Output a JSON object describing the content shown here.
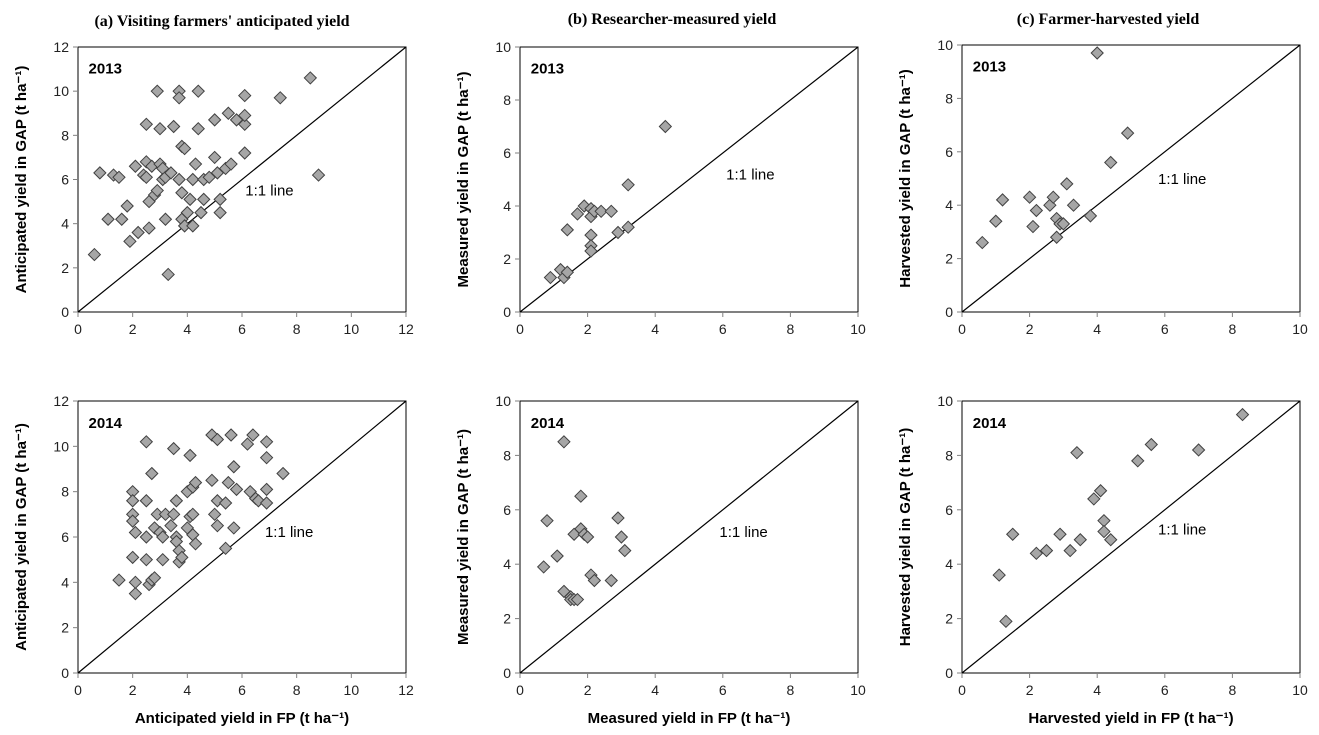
{
  "panel_titles": [
    "(a) Visiting farmers' anticipated yield",
    "(b)  Researcher-measured yield",
    "(c)  Farmer-harvested yield"
  ],
  "colors": {
    "marker_fill": "#a6a6a6",
    "marker_stroke": "#404040",
    "frame": "#000000",
    "axis": "#808080"
  },
  "chart_data": [
    {
      "type": "scatter",
      "year": "2013",
      "ref_line_label": "1:1 line",
      "xlabel": "",
      "ylabel": "Anticipated yield in GAP (t ha⁻¹)",
      "xlim": [
        0,
        12
      ],
      "ylim": [
        0,
        12
      ],
      "xticks": [
        0,
        2,
        4,
        6,
        8,
        10,
        12
      ],
      "yticks": [
        0,
        2,
        4,
        6,
        8,
        10,
        12
      ],
      "points": [
        [
          0.6,
          2.6
        ],
        [
          0.8,
          6.3
        ],
        [
          1.1,
          4.2
        ],
        [
          1.3,
          6.2
        ],
        [
          1.5,
          6.1
        ],
        [
          1.6,
          4.2
        ],
        [
          1.8,
          4.8
        ],
        [
          1.9,
          3.2
        ],
        [
          2.1,
          6.6
        ],
        [
          2.2,
          3.6
        ],
        [
          2.4,
          6.2
        ],
        [
          2.5,
          8.5
        ],
        [
          2.5,
          6.8
        ],
        [
          2.5,
          6.1
        ],
        [
          2.6,
          5.0
        ],
        [
          2.6,
          3.8
        ],
        [
          2.7,
          6.6
        ],
        [
          2.8,
          5.3
        ],
        [
          2.9,
          5.5
        ],
        [
          2.9,
          10.0
        ],
        [
          3.0,
          8.3
        ],
        [
          3.0,
          6.7
        ],
        [
          3.1,
          6.5
        ],
        [
          3.1,
          6.0
        ],
        [
          3.2,
          4.2
        ],
        [
          3.2,
          6.1
        ],
        [
          3.3,
          1.7
        ],
        [
          3.4,
          6.3
        ],
        [
          3.5,
          8.4
        ],
        [
          3.7,
          10.0
        ],
        [
          3.7,
          9.7
        ],
        [
          3.7,
          6.0
        ],
        [
          3.8,
          5.4
        ],
        [
          3.8,
          4.2
        ],
        [
          3.8,
          7.5
        ],
        [
          3.9,
          7.4
        ],
        [
          3.9,
          3.9
        ],
        [
          4.0,
          4.5
        ],
        [
          4.1,
          5.1
        ],
        [
          4.2,
          6.0
        ],
        [
          4.2,
          3.9
        ],
        [
          4.3,
          6.7
        ],
        [
          4.4,
          10.0
        ],
        [
          4.4,
          8.3
        ],
        [
          4.5,
          4.5
        ],
        [
          4.6,
          5.1
        ],
        [
          4.6,
          6.0
        ],
        [
          4.8,
          6.1
        ],
        [
          5.0,
          8.7
        ],
        [
          5.0,
          7.0
        ],
        [
          5.1,
          6.3
        ],
        [
          5.2,
          4.5
        ],
        [
          5.2,
          5.1
        ],
        [
          5.4,
          6.5
        ],
        [
          5.5,
          9.0
        ],
        [
          5.6,
          6.7
        ],
        [
          5.8,
          8.7
        ],
        [
          6.1,
          9.8
        ],
        [
          6.1,
          8.5
        ],
        [
          6.1,
          8.9
        ],
        [
          6.1,
          7.2
        ],
        [
          7.4,
          9.7
        ],
        [
          8.5,
          10.6
        ],
        [
          8.8,
          6.2
        ]
      ]
    },
    {
      "type": "scatter",
      "year": "2013",
      "ref_line_label": "1:1 line",
      "xlabel": "",
      "ylabel": "Measured yield in GAP (t ha⁻¹)",
      "xlim": [
        0,
        10
      ],
      "ylim": [
        0,
        10
      ],
      "xticks": [
        0,
        2,
        4,
        6,
        8,
        10
      ],
      "yticks": [
        0,
        2,
        4,
        6,
        8,
        10
      ],
      "points": [
        [
          0.9,
          1.3
        ],
        [
          1.2,
          1.6
        ],
        [
          1.3,
          1.3
        ],
        [
          1.4,
          1.5
        ],
        [
          1.4,
          3.1
        ],
        [
          1.7,
          3.7
        ],
        [
          1.9,
          4.0
        ],
        [
          2.1,
          3.9
        ],
        [
          2.1,
          3.6
        ],
        [
          2.1,
          2.9
        ],
        [
          2.1,
          2.5
        ],
        [
          2.1,
          2.3
        ],
        [
          2.2,
          3.8
        ],
        [
          2.4,
          3.8
        ],
        [
          2.7,
          3.8
        ],
        [
          2.9,
          3.0
        ],
        [
          3.2,
          3.2
        ],
        [
          3.2,
          4.8
        ],
        [
          4.3,
          7.0
        ]
      ]
    },
    {
      "type": "scatter",
      "year": "2013",
      "ref_line_label": "1:1 line",
      "xlabel": "",
      "ylabel": "Harvested yield in GAP (t ha⁻¹)",
      "xlim": [
        0,
        10
      ],
      "ylim": [
        0,
        10
      ],
      "xticks": [
        0,
        2,
        4,
        6,
        8,
        10
      ],
      "yticks": [
        0,
        2,
        4,
        6,
        8,
        10
      ],
      "points": [
        [
          0.6,
          2.6
        ],
        [
          1.0,
          3.4
        ],
        [
          1.2,
          4.2
        ],
        [
          2.0,
          4.3
        ],
        [
          2.1,
          3.2
        ],
        [
          2.2,
          3.8
        ],
        [
          2.6,
          4.0
        ],
        [
          2.7,
          4.3
        ],
        [
          2.8,
          3.5
        ],
        [
          2.8,
          2.8
        ],
        [
          2.9,
          3.3
        ],
        [
          3.0,
          3.3
        ],
        [
          3.1,
          4.8
        ],
        [
          3.3,
          4.0
        ],
        [
          3.8,
          3.6
        ],
        [
          4.0,
          9.7
        ],
        [
          4.4,
          5.6
        ],
        [
          4.9,
          6.7
        ]
      ]
    },
    {
      "type": "scatter",
      "year": "2014",
      "ref_line_label": "1:1 line",
      "xlabel": "Anticipated yield in FP (t ha⁻¹)",
      "ylabel": "Anticipated yield in GAP (t ha⁻¹)",
      "xlim": [
        0,
        12
      ],
      "ylim": [
        0,
        12
      ],
      "xticks": [
        0,
        2,
        4,
        6,
        8,
        10,
        12
      ],
      "yticks": [
        0,
        2,
        4,
        6,
        8,
        10,
        12
      ],
      "points": [
        [
          1.5,
          4.1
        ],
        [
          2.0,
          8.0
        ],
        [
          2.0,
          7.6
        ],
        [
          2.0,
          7.0
        ],
        [
          2.0,
          6.7
        ],
        [
          2.0,
          5.1
        ],
        [
          2.1,
          6.2
        ],
        [
          2.1,
          3.5
        ],
        [
          2.1,
          4.0
        ],
        [
          2.5,
          10.2
        ],
        [
          2.5,
          7.6
        ],
        [
          2.5,
          6.0
        ],
        [
          2.5,
          5.0
        ],
        [
          2.6,
          3.9
        ],
        [
          2.7,
          4.1
        ],
        [
          2.7,
          8.8
        ],
        [
          2.8,
          4.2
        ],
        [
          2.8,
          6.4
        ],
        [
          2.9,
          7.0
        ],
        [
          3.0,
          6.2
        ],
        [
          3.1,
          6.0
        ],
        [
          3.1,
          5.0
        ],
        [
          3.2,
          7.0
        ],
        [
          3.4,
          6.5
        ],
        [
          3.5,
          9.9
        ],
        [
          3.5,
          7.0
        ],
        [
          3.6,
          7.6
        ],
        [
          3.6,
          6.0
        ],
        [
          3.6,
          5.8
        ],
        [
          3.7,
          5.4
        ],
        [
          3.7,
          4.9
        ],
        [
          3.8,
          5.1
        ],
        [
          4.0,
          6.4
        ],
        [
          4.0,
          8.0
        ],
        [
          4.1,
          9.6
        ],
        [
          4.1,
          6.9
        ],
        [
          4.2,
          8.2
        ],
        [
          4.2,
          7.0
        ],
        [
          4.2,
          6.1
        ],
        [
          4.3,
          8.4
        ],
        [
          4.3,
          5.7
        ],
        [
          4.9,
          10.5
        ],
        [
          4.9,
          8.5
        ],
        [
          5.0,
          7.0
        ],
        [
          5.1,
          10.3
        ],
        [
          5.1,
          7.6
        ],
        [
          5.1,
          6.5
        ],
        [
          5.4,
          7.5
        ],
        [
          5.4,
          5.5
        ],
        [
          5.5,
          8.4
        ],
        [
          5.6,
          10.5
        ],
        [
          5.7,
          9.1
        ],
        [
          5.7,
          6.4
        ],
        [
          5.8,
          8.1
        ],
        [
          6.2,
          10.1
        ],
        [
          6.3,
          8.0
        ],
        [
          6.4,
          10.5
        ],
        [
          6.5,
          7.7
        ],
        [
          6.6,
          7.6
        ],
        [
          6.9,
          10.2
        ],
        [
          6.9,
          9.5
        ],
        [
          6.9,
          8.1
        ],
        [
          6.9,
          7.5
        ],
        [
          7.5,
          8.8
        ]
      ]
    },
    {
      "type": "scatter",
      "year": "2014",
      "ref_line_label": "1:1 line",
      "xlabel": "Measured yield in FP (t ha⁻¹)",
      "ylabel": "Measured yield in GAP (t ha⁻¹)",
      "xlim": [
        0,
        10
      ],
      "ylim": [
        0,
        10
      ],
      "xticks": [
        0,
        2,
        4,
        6,
        8,
        10
      ],
      "yticks": [
        0,
        2,
        4,
        6,
        8,
        10
      ],
      "points": [
        [
          0.7,
          3.9
        ],
        [
          0.8,
          5.6
        ],
        [
          1.1,
          4.3
        ],
        [
          1.3,
          8.5
        ],
        [
          1.3,
          3.0
        ],
        [
          1.5,
          2.8
        ],
        [
          1.5,
          2.7
        ],
        [
          1.6,
          5.1
        ],
        [
          1.6,
          2.7
        ],
        [
          1.7,
          2.7
        ],
        [
          1.8,
          5.3
        ],
        [
          1.8,
          6.5
        ],
        [
          1.9,
          5.1
        ],
        [
          2.0,
          5.0
        ],
        [
          2.1,
          3.6
        ],
        [
          2.2,
          3.4
        ],
        [
          2.7,
          3.4
        ],
        [
          2.9,
          5.7
        ],
        [
          3.0,
          5.0
        ],
        [
          3.1,
          4.5
        ]
      ]
    },
    {
      "type": "scatter",
      "year": "2014",
      "ref_line_label": "1:1 line",
      "xlabel": "Harvested yield in FP (t ha⁻¹)",
      "ylabel": "Harvested yield in GAP (t ha⁻¹)",
      "xlim": [
        0,
        10
      ],
      "ylim": [
        0,
        10
      ],
      "xticks": [
        0,
        2,
        4,
        6,
        8,
        10
      ],
      "yticks": [
        0,
        2,
        4,
        6,
        8,
        10
      ],
      "points": [
        [
          1.1,
          3.6
        ],
        [
          1.3,
          1.9
        ],
        [
          1.5,
          5.1
        ],
        [
          2.2,
          4.4
        ],
        [
          2.5,
          4.5
        ],
        [
          2.9,
          5.1
        ],
        [
          3.2,
          4.5
        ],
        [
          3.4,
          8.1
        ],
        [
          3.5,
          4.9
        ],
        [
          3.9,
          6.4
        ],
        [
          4.1,
          6.7
        ],
        [
          4.2,
          5.6
        ],
        [
          4.2,
          5.2
        ],
        [
          4.4,
          4.9
        ],
        [
          5.2,
          7.8
        ],
        [
          5.6,
          8.4
        ],
        [
          7.0,
          8.2
        ],
        [
          8.3,
          9.5
        ]
      ]
    }
  ]
}
